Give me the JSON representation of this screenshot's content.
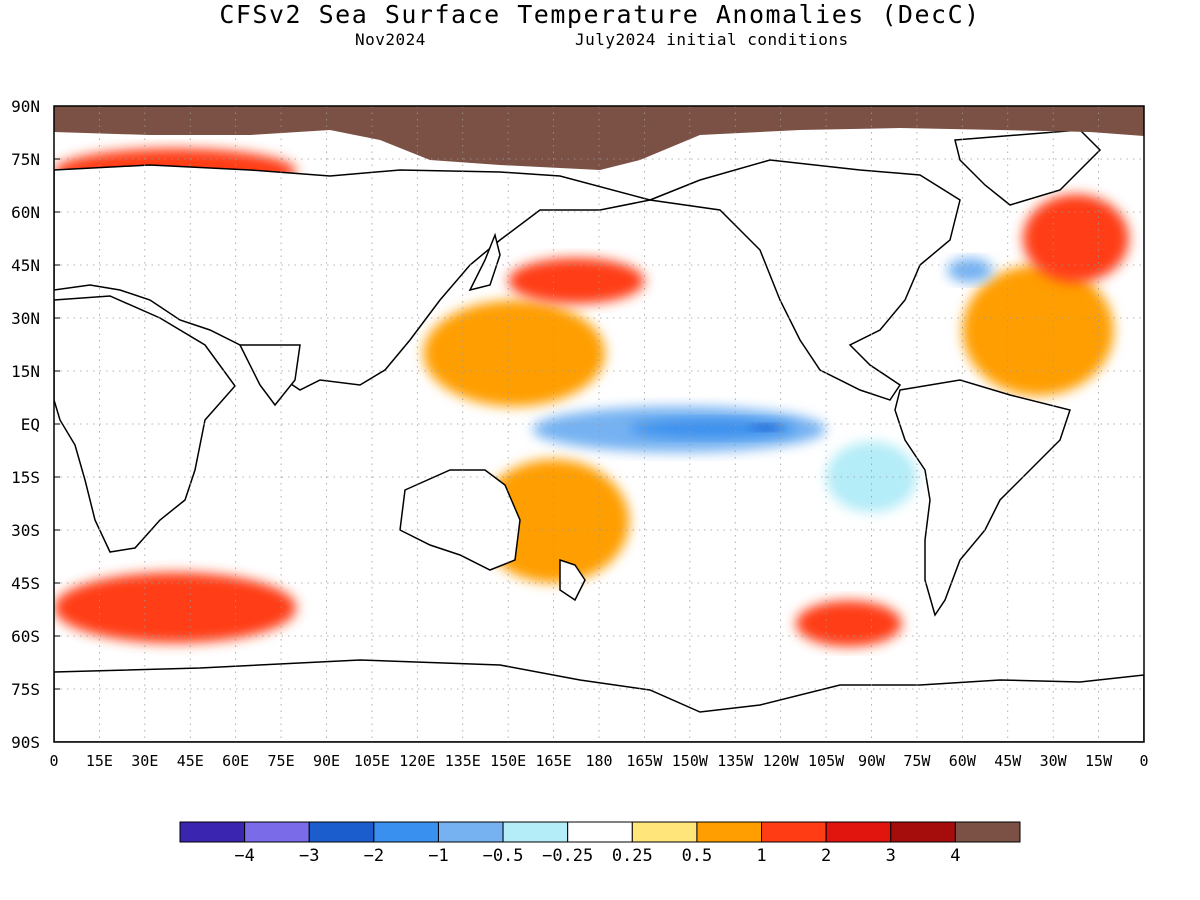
{
  "title": "CFSv2 Sea Surface Temperature Anomalies (DecC)",
  "subtitle_left": "Nov2024",
  "subtitle_right": "July2024 initial conditions",
  "colors": {
    "land": "#ffffff",
    "ice": "#7b5045",
    "coast": "#000000",
    "grid": "#9a9a9a"
  },
  "map": {
    "lat_labels": [
      "90N",
      "75N",
      "60N",
      "45N",
      "30N",
      "15N",
      "EQ",
      "15S",
      "30S",
      "45S",
      "60S",
      "75S",
      "90S"
    ],
    "lon_labels": [
      "0",
      "15E",
      "30E",
      "45E",
      "60E",
      "75E",
      "90E",
      "105E",
      "120E",
      "135E",
      "150E",
      "165E",
      "180",
      "165W",
      "150W",
      "135W",
      "120W",
      "105W",
      "90W",
      "75W",
      "60W",
      "45W",
      "30W",
      "15W",
      "0"
    ],
    "features": [
      {
        "name": "enso-cold-tongue",
        "lon": [
          158,
          255
        ],
        "lat": [
          -8,
          5
        ],
        "value": -1.0
      },
      {
        "name": "enso-core",
        "lon": [
          190,
          245
        ],
        "lat": [
          -4,
          1.5
        ],
        "value": -2.0
      },
      {
        "name": "enso-peak",
        "lon": [
          230,
          240
        ],
        "lat": [
          -2,
          0
        ],
        "value": -3.0
      },
      {
        "name": "nw-pacific-warm",
        "lon": [
          122,
          182
        ],
        "lat": [
          5,
          35
        ],
        "value": 0.5
      },
      {
        "name": "north-pacific-warm",
        "lon": [
          150,
          195
        ],
        "lat": [
          34,
          47
        ],
        "value": 1.0
      },
      {
        "name": "south-pacific-warm",
        "lon": [
          140,
          190
        ],
        "lat": [
          -45,
          -10
        ],
        "value": 0.5
      },
      {
        "name": "southeast-pacific-warm",
        "lon": [
          245,
          280
        ],
        "lat": [
          -63,
          -50
        ],
        "value": 1.0
      },
      {
        "name": "southern-ocean-warm",
        "lon": [
          0,
          80
        ],
        "lat": [
          -62,
          -42
        ],
        "value": 1.0
      },
      {
        "name": "north-atlantic-warm",
        "lon": [
          300,
          350
        ],
        "lat": [
          8,
          45
        ],
        "value": 0.5
      },
      {
        "name": "subpolar-atlantic-warm",
        "lon": [
          320,
          355
        ],
        "lat": [
          40,
          65
        ],
        "value": 1.0
      },
      {
        "name": "gulf-stream-cold",
        "lon": [
          295,
          310
        ],
        "lat": [
          40,
          47
        ],
        "value": -1.0
      },
      {
        "name": "arctic-fringe-warm",
        "lon": [
          0,
          80
        ],
        "lat": [
          65,
          78
        ],
        "value": 1.0
      },
      {
        "name": "east-pacific-cool",
        "lon": [
          255,
          285
        ],
        "lat": [
          -25,
          -5
        ],
        "value": -0.5
      }
    ]
  },
  "colorbar": {
    "colors": [
      "#3a25b0",
      "#7a6ce8",
      "#1b5dcc",
      "#3a90ee",
      "#76b2f2",
      "#b4ecf8",
      "#ffffff",
      "#ffe57a",
      "#ff9e00",
      "#ff3c14",
      "#e2140e",
      "#a50c0c",
      "#7b5045"
    ],
    "tick_labels": [
      "−4",
      "−3",
      "−2",
      "−1",
      "−0.5",
      "−0.25",
      "0.25",
      "0.5",
      "1",
      "2",
      "3",
      "4"
    ]
  }
}
